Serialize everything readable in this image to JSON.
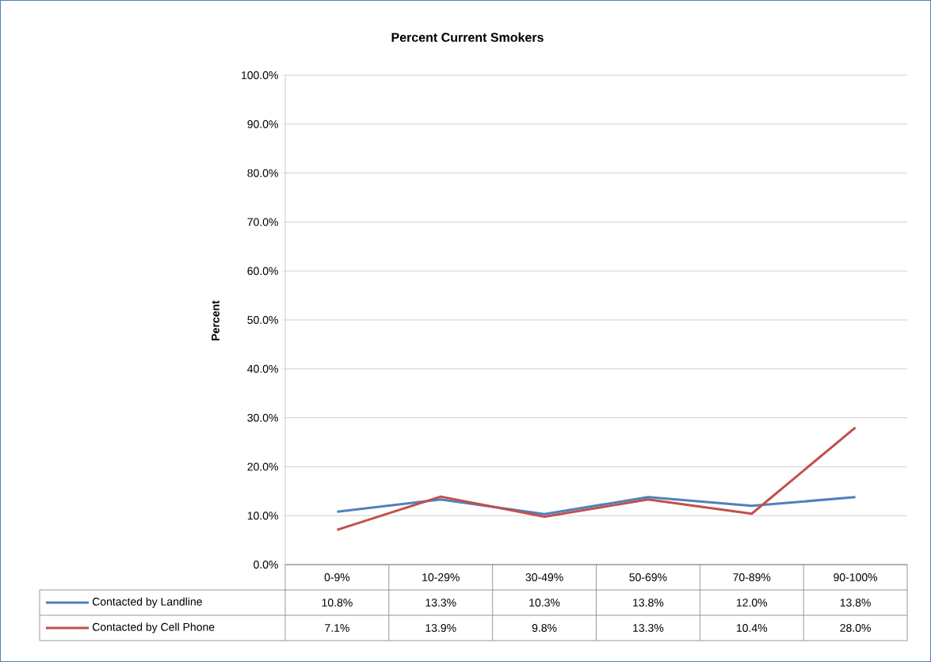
{
  "chart_data": {
    "type": "line",
    "title": "Percent Current Smokers",
    "ylabel": "Percent",
    "categories": [
      "0-9%",
      "10-29%",
      "30-49%",
      "50-69%",
      "70-89%",
      "90-100%"
    ],
    "series": [
      {
        "name": "Contacted by Landline",
        "color": "#4f81bd",
        "values": [
          10.8,
          13.3,
          10.3,
          13.8,
          12.0,
          13.8
        ],
        "value_labels": [
          "10.8%",
          "13.3%",
          "10.3%",
          "13.8%",
          "12.0%",
          "13.8%"
        ]
      },
      {
        "name": "Contacted by Cell Phone",
        "color": "#c0504d",
        "values": [
          7.1,
          13.9,
          9.8,
          13.3,
          10.4,
          28.0
        ],
        "value_labels": [
          "7.1%",
          "13.9%",
          "9.8%",
          "13.3%",
          "10.4%",
          "28.0%"
        ]
      }
    ],
    "ylim": [
      0,
      100
    ],
    "yticks": [
      {
        "value": 0,
        "label": "0.0%"
      },
      {
        "value": 10,
        "label": "10.0%"
      },
      {
        "value": 20,
        "label": "20.0%"
      },
      {
        "value": 30,
        "label": "30.0%"
      },
      {
        "value": 40,
        "label": "40.0%"
      },
      {
        "value": 50,
        "label": "50.0%"
      },
      {
        "value": 60,
        "label": "60.0%"
      },
      {
        "value": 70,
        "label": "70.0%"
      },
      {
        "value": 80,
        "label": "80.0%"
      },
      {
        "value": 90,
        "label": "90.0%"
      },
      {
        "value": 100,
        "label": "100.0%"
      }
    ],
    "grid": "y",
    "legend": "bottom",
    "marker": "none",
    "line_style": "solid"
  }
}
